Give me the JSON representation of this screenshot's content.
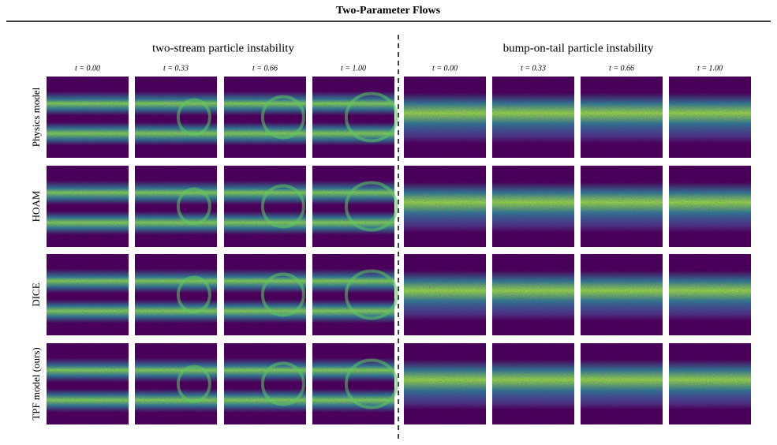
{
  "title": "Two-Parameter Flows",
  "groups": [
    {
      "title": "two-stream particle instability",
      "times": [
        "t = 0.00",
        "t = 0.33",
        "t = 0.66",
        "t = 1.00"
      ]
    },
    {
      "title": "bump-on-tail particle instability",
      "times": [
        "t = 0.00",
        "t = 0.33",
        "t = 0.66",
        "t = 1.00"
      ]
    }
  ],
  "rows": [
    "Physics model",
    "HOAM",
    "DICE",
    "TPF model (ours)"
  ]
}
